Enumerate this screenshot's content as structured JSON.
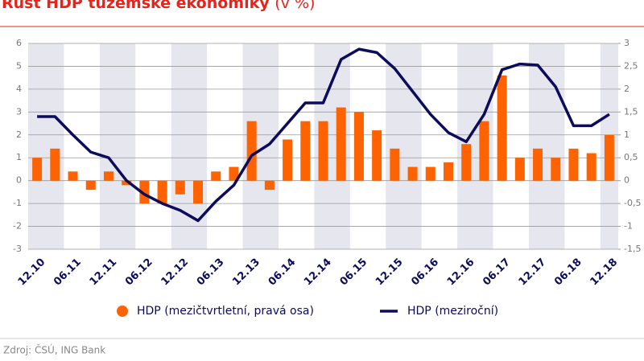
{
  "chart_data": {
    "type": "bar-line",
    "title": "Růst HDP tuzemské ekonomiky",
    "title_suffix": "(v %)",
    "source": "Zdroj: ČSÚ, ING Bank",
    "categories": [
      "12.10",
      null,
      "06.11",
      null,
      "12.11",
      null,
      "06.12",
      null,
      "12.12",
      null,
      "06.13",
      null,
      "12.13",
      null,
      "06.14",
      null,
      "12.14",
      null,
      "06.15",
      null,
      "12.15",
      null,
      "06.16",
      null,
      "12.16",
      null,
      "06.17",
      null,
      "12.17",
      null,
      "06.18",
      null,
      "12.18"
    ],
    "series": [
      {
        "name": "HDP (mezičtvrtletní, pravá osa)",
        "type": "bar",
        "axis": "y2",
        "color": "#ff6200",
        "values": [
          0.5,
          0.7,
          0.2,
          -0.2,
          0.2,
          -0.1,
          -0.5,
          -0.5,
          -0.3,
          -0.5,
          0.2,
          0.3,
          1.3,
          -0.2,
          0.9,
          1.3,
          1.3,
          1.6,
          1.5,
          1.1,
          0.7,
          0.3,
          0.3,
          0.4,
          0.8,
          1.3,
          2.3,
          0.5,
          0.7,
          0.5,
          0.7,
          0.6,
          1.0
        ]
      },
      {
        "name": "HDP (meziroční)",
        "type": "line",
        "axis": "y",
        "color": "#0c0c5a",
        "values": [
          2.8,
          2.8,
          2.0,
          1.25,
          1.0,
          0.0,
          -0.6,
          -1.0,
          -1.3,
          -1.75,
          -0.9,
          -0.2,
          1.1,
          1.6,
          2.5,
          3.4,
          3.4,
          5.3,
          5.75,
          5.6,
          4.9,
          3.9,
          2.9,
          2.1,
          1.7,
          2.9,
          4.85,
          5.1,
          5.05,
          4.1,
          2.4,
          2.4,
          2.9
        ]
      }
    ],
    "ylim": [
      -3,
      6
    ],
    "yticks": [
      -3,
      -2,
      -1,
      0,
      1,
      2,
      3,
      4,
      5,
      6
    ],
    "y2lim": [
      -1.5,
      3
    ],
    "y2ticks": [
      {
        "value": -1.5,
        "label": "-1,5"
      },
      -1,
      {
        "value": -0.5,
        "label": "-0,5"
      },
      0,
      {
        "value": 0.5,
        "label": "0,5"
      },
      1,
      {
        "value": 1.5,
        "label": "1,5"
      },
      2,
      {
        "value": 2.5,
        "label": "2,5"
      },
      3
    ],
    "grid": true
  }
}
